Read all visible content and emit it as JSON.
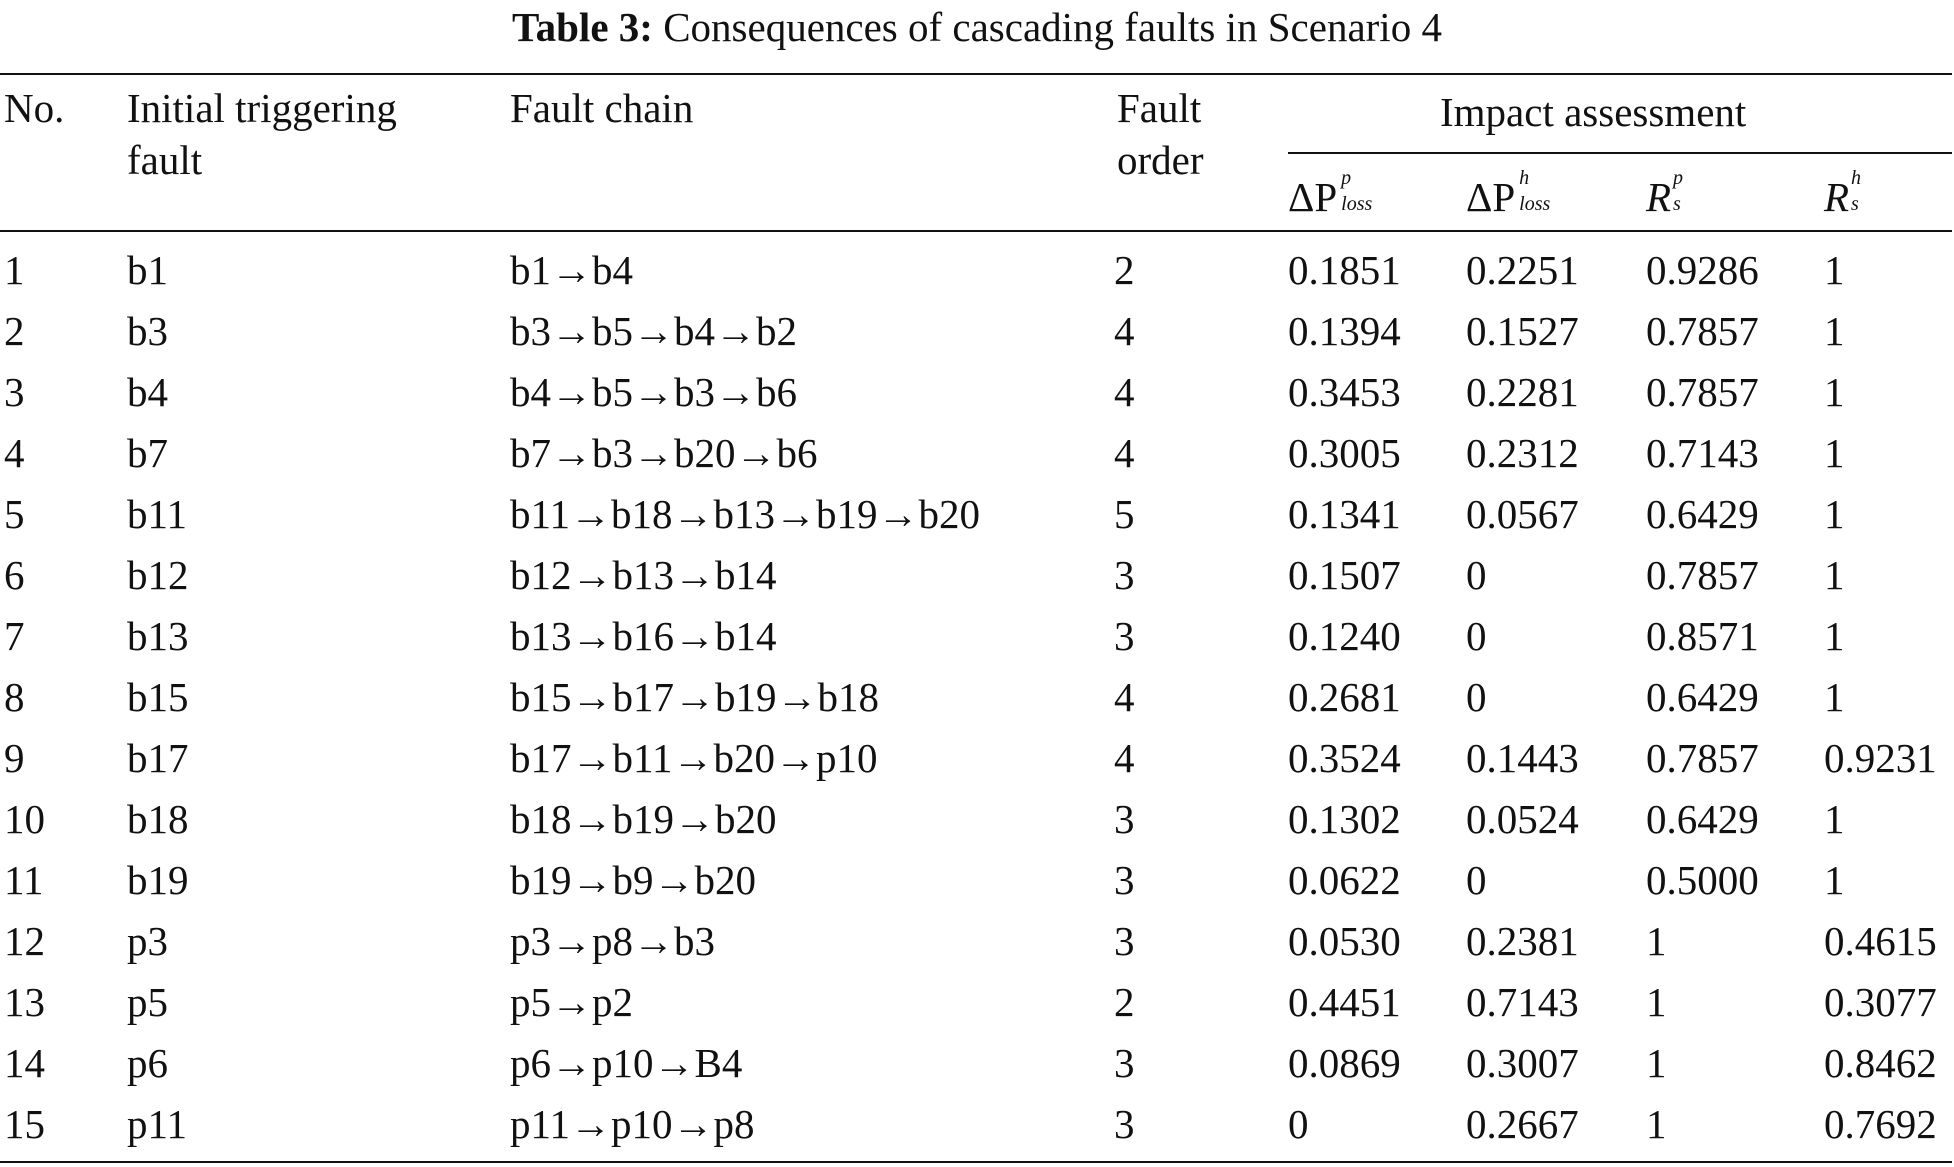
{
  "caption": {
    "label": "Table 3:",
    "title": "Consequences of cascading faults in Scenario 4"
  },
  "headers": {
    "no": "No.",
    "initial_line1": "Initial triggering",
    "initial_line2": "fault",
    "chain": "Fault chain",
    "order_line1": "Fault",
    "order_line2": "order",
    "impact": "Impact assessment",
    "dp_symbol": "ΔP",
    "dp_sup": "p",
    "dp_sub": "loss",
    "dh_symbol": "ΔP",
    "dh_sup": "h",
    "dh_sub": "loss",
    "rp_symbol": "R",
    "rp_sup": "p",
    "rp_sub": "s",
    "rh_symbol": "R",
    "rh_sup": "h",
    "rh_sub": "s"
  },
  "rows": [
    {
      "no": "1",
      "initial": "b1",
      "chain": "b1→b4",
      "order": "2",
      "dp": "0.1851",
      "dh": "0.2251",
      "rp": "0.9286",
      "rh": "1"
    },
    {
      "no": "2",
      "initial": "b3",
      "chain": "b3→b5→b4→b2",
      "order": "4",
      "dp": "0.1394",
      "dh": "0.1527",
      "rp": "0.7857",
      "rh": "1"
    },
    {
      "no": "3",
      "initial": "b4",
      "chain": "b4→b5→b3→b6",
      "order": "4",
      "dp": "0.3453",
      "dh": "0.2281",
      "rp": "0.7857",
      "rh": "1"
    },
    {
      "no": "4",
      "initial": "b7",
      "chain": "b7→b3→b20→b6",
      "order": "4",
      "dp": "0.3005",
      "dh": "0.2312",
      "rp": "0.7143",
      "rh": "1"
    },
    {
      "no": "5",
      "initial": "b11",
      "chain": "b11→b18→b13→b19→b20",
      "order": "5",
      "dp": "0.1341",
      "dh": "0.0567",
      "rp": "0.6429",
      "rh": "1"
    },
    {
      "no": "6",
      "initial": "b12",
      "chain": "b12→b13→b14",
      "order": "3",
      "dp": "0.1507",
      "dh": "0",
      "rp": "0.7857",
      "rh": "1"
    },
    {
      "no": "7",
      "initial": "b13",
      "chain": "b13→b16→b14",
      "order": "3",
      "dp": "0.1240",
      "dh": "0",
      "rp": "0.8571",
      "rh": "1"
    },
    {
      "no": "8",
      "initial": "b15",
      "chain": "b15→b17→b19→b18",
      "order": "4",
      "dp": "0.2681",
      "dh": "0",
      "rp": "0.6429",
      "rh": "1"
    },
    {
      "no": "9",
      "initial": "b17",
      "chain": "b17→b11→b20→p10",
      "order": "4",
      "dp": "0.3524",
      "dh": "0.1443",
      "rp": "0.7857",
      "rh": "0.9231"
    },
    {
      "no": "10",
      "initial": "b18",
      "chain": "b18→b19→b20",
      "order": "3",
      "dp": "0.1302",
      "dh": "0.0524",
      "rp": "0.6429",
      "rh": "1"
    },
    {
      "no": "11",
      "initial": "b19",
      "chain": "b19→b9→b20",
      "order": "3",
      "dp": "0.0622",
      "dh": "0",
      "rp": "0.5000",
      "rh": "1"
    },
    {
      "no": "12",
      "initial": "p3",
      "chain": "p3→p8→b3",
      "order": "3",
      "dp": "0.0530",
      "dh": "0.2381",
      "rp": "1",
      "rh": "0.4615"
    },
    {
      "no": "13",
      "initial": "p5",
      "chain": "p5→p2",
      "order": "2",
      "dp": "0.4451",
      "dh": "0.7143",
      "rp": "1",
      "rh": "0.3077"
    },
    {
      "no": "14",
      "initial": "p6",
      "chain": "p6→p10→B4",
      "order": "3",
      "dp": "0.0869",
      "dh": "0.3007",
      "rp": "1",
      "rh": "0.8462"
    },
    {
      "no": "15",
      "initial": "p11",
      "chain": "p11→p10→p8",
      "order": "3",
      "dp": "0",
      "dh": "0.2667",
      "rp": "1",
      "rh": "0.7692"
    }
  ]
}
